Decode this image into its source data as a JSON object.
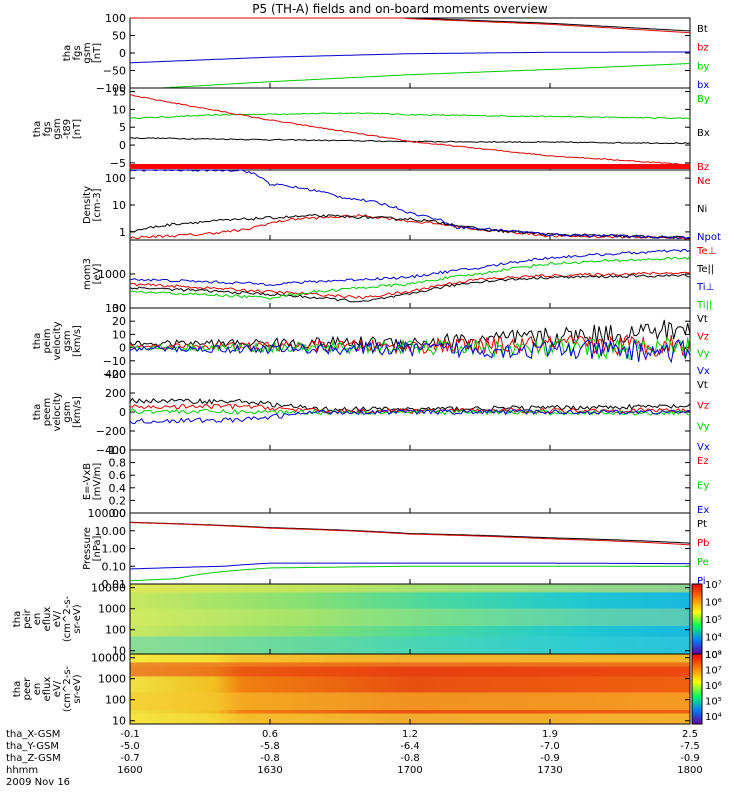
{
  "title": "P5 (TH-A) fields and on-board moments overview",
  "date_label": "2009 Nov 16",
  "time_axis": {
    "tick_labels": [
      "1600",
      "1630",
      "1700",
      "1730",
      "1800"
    ],
    "row_labels": [
      "tha_X-GSM",
      "tha_Y-GSM",
      "tha_Z-GSM",
      "hhmm"
    ],
    "x_gsm": [
      "-0.1",
      "0.6",
      "1.2",
      "1.9",
      "2.5"
    ],
    "y_gsm": [
      "-5.0",
      "-5.8",
      "-6.4",
      "-7.0",
      "-7.5"
    ],
    "z_gsm": [
      "-0.7",
      "-0.8",
      "-0.8",
      "-0.9",
      "-0.9"
    ]
  },
  "colors": {
    "black": "#000000",
    "red": "#dd0000",
    "green": "#00cc00",
    "blue": "#0000cc"
  },
  "chart_data": [
    {
      "type": "line",
      "ylabel": [
        "tha",
        "fgs",
        "gsm",
        "[nT]"
      ],
      "ylim": [
        -100,
        100
      ],
      "yticks": [
        100,
        50,
        0,
        -50,
        -100
      ],
      "ytick_labels": [
        "100",
        "50",
        "0",
        "−50",
        "−100"
      ],
      "legend": [
        "Bt",
        "bz",
        "by",
        "bx"
      ],
      "series": [
        {
          "name": "Bt",
          "color": "black",
          "x": [
            1600,
            1640,
            1700,
            1730,
            1800
          ],
          "values": [
            148,
            125,
            100,
            85,
            63
          ]
        },
        {
          "name": "bz",
          "color": "red",
          "x": [
            1600,
            1640,
            1700,
            1730,
            1800
          ],
          "values": [
            146,
            123,
            98,
            82,
            58
          ]
        },
        {
          "name": "by",
          "color": "green",
          "x": [
            1600,
            1630,
            1700,
            1730,
            1800
          ],
          "values": [
            -105,
            -82,
            -62,
            -47,
            -30
          ]
        },
        {
          "name": "bx",
          "color": "blue",
          "x": [
            1600,
            1630,
            1700,
            1730,
            1800
          ],
          "values": [
            -28,
            -12,
            -2,
            2,
            3
          ]
        }
      ]
    },
    {
      "type": "line",
      "ylabel": [
        "tha",
        "fgs",
        "gsm",
        "-t89",
        "[nT]"
      ],
      "ylim": [
        -7,
        16
      ],
      "yticks": [
        15,
        10,
        5,
        0,
        -5
      ],
      "ytick_labels": [
        "15",
        "10",
        "5",
        "0",
        "−5"
      ],
      "legend": [
        "By",
        "Bx",
        "Bz"
      ],
      "series": [
        {
          "name": "By",
          "color": "green",
          "x": [
            1600,
            1620,
            1650,
            1700,
            1730,
            1800
          ],
          "values": [
            7.5,
            8.5,
            9,
            8.5,
            8,
            7.5
          ]
        },
        {
          "name": "Bx",
          "color": "black",
          "x": [
            1600,
            1630,
            1700,
            1730,
            1800
          ],
          "values": [
            2,
            1.5,
            1,
            0.8,
            0.5
          ]
        },
        {
          "name": "Bz",
          "color": "red",
          "x": [
            1600,
            1630,
            1700,
            1730,
            1800
          ],
          "values": [
            14,
            7,
            1,
            -3,
            -5.5
          ]
        }
      ]
    },
    {
      "type": "line",
      "ylabel": [
        "Density",
        "[cm-3]"
      ],
      "yscale": "log",
      "ylim": [
        0.5,
        200
      ],
      "yticks": [
        100,
        10,
        1
      ],
      "ytick_labels": [
        "100",
        "10",
        "1"
      ],
      "legend": [
        "Ne",
        "Ni",
        "Npot"
      ],
      "series": [
        {
          "name": "Ne",
          "color": "red",
          "x": [
            1600,
            1615,
            1625,
            1635,
            1650,
            1700,
            1715,
            1730,
            1800
          ],
          "values": [
            0.6,
            0.8,
            1.2,
            3,
            4,
            2.5,
            1.2,
            0.7,
            0.6
          ]
        },
        {
          "name": "Ni",
          "color": "black",
          "x": [
            1600,
            1610,
            1625,
            1640,
            1700,
            1715,
            1730,
            1800
          ],
          "values": [
            1,
            2,
            3,
            4,
            3,
            1.2,
            0.8,
            0.6
          ]
        },
        {
          "name": "Npot",
          "color": "blue",
          "x": [
            1624,
            1630,
            1645,
            1700,
            1710,
            1730,
            1800
          ],
          "values": [
            200,
            60,
            20,
            5,
            1.5,
            0.8,
            0.6
          ]
        }
      ]
    },
    {
      "type": "line",
      "ylabel": [
        "mom3",
        "[eV]"
      ],
      "yscale": "log",
      "ylim": [
        100,
        10000
      ],
      "yticks": [
        1000,
        100
      ],
      "ytick_labels": [
        "1000",
        "100"
      ],
      "legend": [
        "Te⊥",
        "Te||",
        "Ti⊥",
        "Ti||"
      ],
      "series": [
        {
          "name": "Te⊥",
          "color": "red",
          "x": [
            1600,
            1630,
            1650,
            1700,
            1715,
            1730,
            1800
          ],
          "values": [
            500,
            300,
            200,
            300,
            700,
            900,
            1100
          ]
        },
        {
          "name": "Te||",
          "color": "black",
          "x": [
            1600,
            1630,
            1650,
            1700,
            1715,
            1730,
            1800
          ],
          "values": [
            400,
            250,
            150,
            250,
            600,
            800,
            900
          ]
        },
        {
          "name": "Ti⊥",
          "color": "blue",
          "x": [
            1600,
            1630,
            1700,
            1715,
            1730,
            1800
          ],
          "values": [
            700,
            500,
            800,
            1500,
            3000,
            5000
          ]
        },
        {
          "name": "Ti||",
          "color": "green",
          "x": [
            1600,
            1630,
            1700,
            1715,
            1730,
            1800
          ],
          "values": [
            300,
            200,
            500,
            1000,
            2000,
            3000
          ]
        }
      ]
    },
    {
      "type": "line",
      "ylabel": [
        "tha",
        "peim",
        "velocity",
        "gsm",
        "[km/s]"
      ],
      "ylim": [
        -20,
        30
      ],
      "yticks": [
        30,
        20,
        10,
        0,
        -10,
        -20
      ],
      "ytick_labels": [
        "30",
        "20",
        "10",
        "0",
        "−10",
        "−20"
      ],
      "legend": [
        "Vt",
        "Vz",
        "Vy",
        "Vx"
      ],
      "series": [
        {
          "name": "Vt",
          "color": "black",
          "x": [
            1600,
            1700,
            1730,
            1800
          ],
          "values": [
            3,
            4,
            8,
            14
          ]
        },
        {
          "name": "Vz",
          "color": "red",
          "x": [
            1600,
            1700,
            1730,
            1800
          ],
          "values": [
            1,
            1,
            2,
            2
          ]
        },
        {
          "name": "Vy",
          "color": "green",
          "x": [
            1600,
            1700,
            1730,
            1800
          ],
          "values": [
            0,
            0,
            -1,
            -1
          ]
        },
        {
          "name": "Vx",
          "color": "blue",
          "x": [
            1600,
            1700,
            1730,
            1800
          ],
          "values": [
            -1,
            -1,
            -2,
            -3
          ]
        }
      ]
    },
    {
      "type": "line",
      "ylabel": [
        "tha",
        "peem",
        "velocity",
        "gsm",
        "[km/s]"
      ],
      "ylim": [
        -400,
        400
      ],
      "yticks": [
        400,
        200,
        0,
        -200,
        -400
      ],
      "ytick_labels": [
        "400",
        "200",
        "0",
        "−200",
        "−400"
      ],
      "legend": [
        "Vt",
        "Vz",
        "Vy",
        "Vx"
      ],
      "series": [
        {
          "name": "Vt",
          "color": "black",
          "x": [
            1600,
            1625,
            1640,
            1700,
            1800
          ],
          "values": [
            120,
            110,
            30,
            30,
            60
          ]
        },
        {
          "name": "Vz",
          "color": "red",
          "x": [
            1600,
            1625,
            1640,
            1700,
            1800
          ],
          "values": [
            50,
            60,
            10,
            10,
            20
          ]
        },
        {
          "name": "Vy",
          "color": "green",
          "x": [
            1600,
            1625,
            1640,
            1700,
            1800
          ],
          "values": [
            10,
            0,
            0,
            0,
            -10
          ]
        },
        {
          "name": "Vx",
          "color": "blue",
          "x": [
            1600,
            1625,
            1640,
            1700,
            1800
          ],
          "values": [
            -100,
            -80,
            0,
            0,
            0
          ]
        }
      ]
    },
    {
      "type": "line",
      "ylabel": [
        "E=-VxB",
        "[mV/m]"
      ],
      "ylim": [
        0,
        1
      ],
      "yticks": [
        1.0,
        0.8,
        0.6,
        0.4,
        0.2,
        0.0
      ],
      "ytick_labels": [
        "1.0",
        "0.8",
        "0.6",
        "0.4",
        "0.2",
        "0.0"
      ],
      "legend": [
        "Ez",
        "Ey",
        "Ex"
      ],
      "series": []
    },
    {
      "type": "line",
      "ylabel": [
        "Pressure",
        "[nPa]"
      ],
      "yscale": "log",
      "ylim": [
        0.01,
        100
      ],
      "yticks": [
        100,
        10,
        1,
        0.1,
        0.01
      ],
      "ytick_labels": [
        "100.00",
        "10.00",
        "1.00",
        "0.10",
        "0.01"
      ],
      "legend": [
        "Pt",
        "Pb",
        "Pe",
        "Pi"
      ],
      "series": [
        {
          "name": "Pt",
          "color": "black",
          "x": [
            1600,
            1630,
            1700,
            1730,
            1800
          ],
          "values": [
            30,
            15,
            7,
            4,
            2
          ]
        },
        {
          "name": "Pb",
          "color": "red",
          "x": [
            1600,
            1630,
            1700,
            1730,
            1800
          ],
          "values": [
            29,
            14,
            6.5,
            3.5,
            1.6
          ]
        },
        {
          "name": "Pe",
          "color": "green",
          "x": [
            1600,
            1610,
            1620,
            1630,
            1700,
            1730,
            1800
          ],
          "values": [
            0.015,
            0.02,
            0.05,
            0.08,
            0.1,
            0.1,
            0.1
          ]
        },
        {
          "name": "Pi",
          "color": "blue",
          "x": [
            1600,
            1620,
            1630,
            1700,
            1730,
            1800
          ],
          "values": [
            0.07,
            0.1,
            0.15,
            0.15,
            0.15,
            0.14
          ]
        }
      ]
    },
    {
      "type": "heatmap",
      "ylabel": [
        "tha",
        "peir",
        "en",
        "eflux",
        "eV/",
        "(cm^2-s-",
        "sr-eV)"
      ],
      "yscale": "log",
      "ylim": [
        7,
        15000
      ],
      "yticks": [
        10000,
        1000,
        100,
        10
      ],
      "ytick_labels": [
        "10000",
        "1000",
        "100",
        "10"
      ],
      "colorbar": {
        "zlim": [
          1000,
          10000000
        ],
        "tick_labels": [
          "10⁷",
          "10⁶",
          "10⁵",
          "10⁴",
          "10³"
        ]
      }
    },
    {
      "type": "heatmap",
      "ylabel": [
        "tha",
        "peer",
        "en",
        "eflux",
        "eV/",
        "(cm^2-s-",
        "sr-eV)"
      ],
      "yscale": "log",
      "ylim": [
        7,
        15000
      ],
      "yticks": [
        10000,
        1000,
        100,
        10
      ],
      "ytick_labels": [
        "10000",
        "1000",
        "100",
        "10"
      ],
      "colorbar": {
        "zlim": [
          3000,
          100000000
        ],
        "tick_labels": [
          "10⁸",
          "10⁷",
          "10⁶",
          "10⁵",
          "10⁴"
        ]
      }
    }
  ]
}
